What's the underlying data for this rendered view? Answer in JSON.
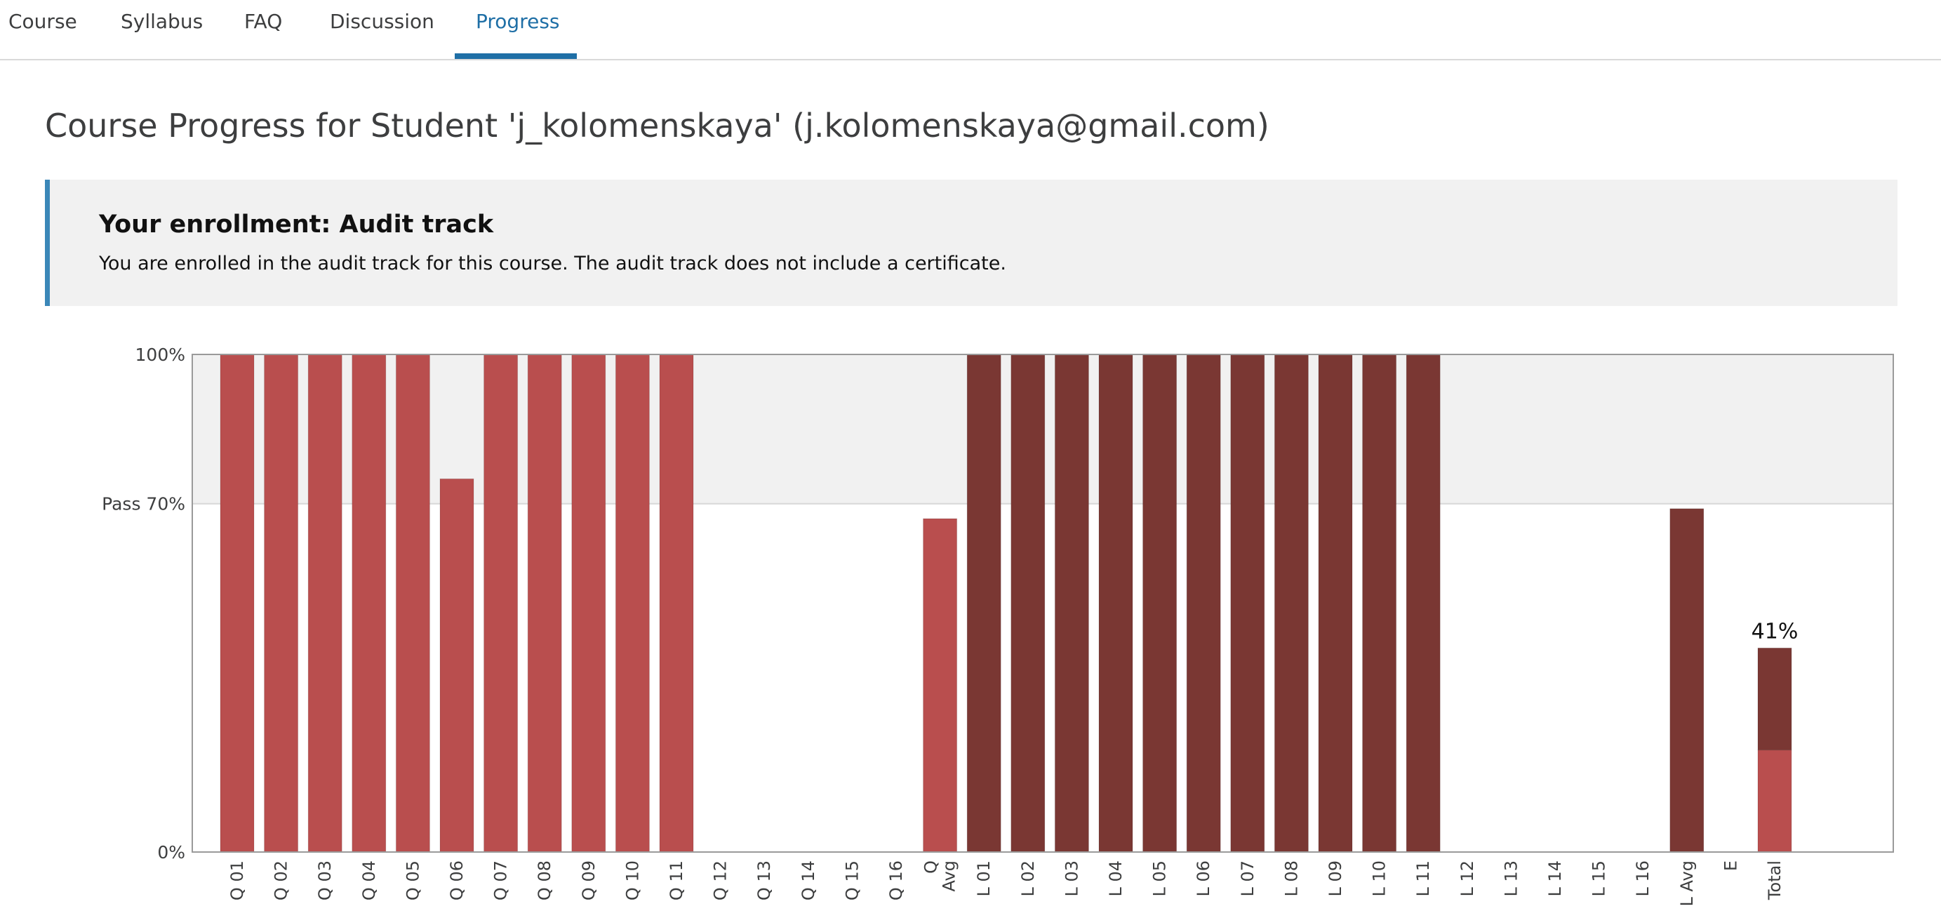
{
  "nav": {
    "tabs": [
      {
        "label": "Course",
        "active": false
      },
      {
        "label": "Syllabus",
        "active": false
      },
      {
        "label": "FAQ",
        "active": false
      },
      {
        "label": "Discussion",
        "active": false
      },
      {
        "label": "Progress",
        "active": true
      }
    ]
  },
  "page": {
    "title": "Course Progress for Student 'j_kolomenskaya' (j.kolomenskaya@gmail.com)"
  },
  "enrollment": {
    "heading": "Your enrollment: Audit track",
    "text": "You are enrolled in the audit track for this course. The audit track does not include a certificate."
  },
  "colors": {
    "accent": "#1f6fa6",
    "quiz_bar": "#b94e4e",
    "lab_bar": "#7a3733",
    "pass_region": "#f1f1f1"
  },
  "chart_data": {
    "type": "bar",
    "ylim": [
      0,
      100
    ],
    "yticks": [
      {
        "value": 0,
        "label": "0%"
      },
      {
        "value": 70,
        "label": "Pass 70%"
      },
      {
        "value": 100,
        "label": "100%"
      }
    ],
    "pass_threshold": 70,
    "categories": [
      "Q 01",
      "Q 02",
      "Q 03",
      "Q 04",
      "Q 05",
      "Q 06",
      "Q 07",
      "Q 08",
      "Q 09",
      "Q 10",
      "Q 11",
      "Q 12",
      "Q 13",
      "Q 14",
      "Q 15",
      "Q 16",
      "Q Avg",
      "L 01",
      "L 02",
      "L 03",
      "L 04",
      "L 05",
      "L 06",
      "L 07",
      "L 08",
      "L 09",
      "L 10",
      "L 11",
      "L 12",
      "L 13",
      "L 14",
      "L 15",
      "L 16",
      "L Avg",
      "E",
      "Total"
    ],
    "tick_labels": [
      [
        "Q 01"
      ],
      [
        "Q 02"
      ],
      [
        "Q 03"
      ],
      [
        "Q 04"
      ],
      [
        "Q 05"
      ],
      [
        "Q 06"
      ],
      [
        "Q 07"
      ],
      [
        "Q 08"
      ],
      [
        "Q 09"
      ],
      [
        "Q 10"
      ],
      [
        "Q 11"
      ],
      [
        "Q 12"
      ],
      [
        "Q 13"
      ],
      [
        "Q 14"
      ],
      [
        "Q 15"
      ],
      [
        "Q 16"
      ],
      [
        "Q",
        "Avg"
      ],
      [
        "L 01"
      ],
      [
        "L 02"
      ],
      [
        "L 03"
      ],
      [
        "L 04"
      ],
      [
        "L 05"
      ],
      [
        "L 06"
      ],
      [
        "L 07"
      ],
      [
        "L 08"
      ],
      [
        "L 09"
      ],
      [
        "L 10"
      ],
      [
        "L 11"
      ],
      [
        "L 12"
      ],
      [
        "L 13"
      ],
      [
        "L 14"
      ],
      [
        "L 15"
      ],
      [
        "L 16"
      ],
      [
        "L Avg"
      ],
      [
        "E"
      ],
      [
        "Total"
      ]
    ],
    "bars": [
      {
        "value": 100,
        "kind": "quiz"
      },
      {
        "value": 100,
        "kind": "quiz"
      },
      {
        "value": 100,
        "kind": "quiz"
      },
      {
        "value": 100,
        "kind": "quiz"
      },
      {
        "value": 100,
        "kind": "quiz"
      },
      {
        "value": 75,
        "kind": "quiz"
      },
      {
        "value": 100,
        "kind": "quiz"
      },
      {
        "value": 100,
        "kind": "quiz"
      },
      {
        "value": 100,
        "kind": "quiz"
      },
      {
        "value": 100,
        "kind": "quiz"
      },
      {
        "value": 100,
        "kind": "quiz"
      },
      {
        "value": 0,
        "kind": "quiz"
      },
      {
        "value": 0,
        "kind": "quiz"
      },
      {
        "value": 0,
        "kind": "quiz"
      },
      {
        "value": 0,
        "kind": "quiz"
      },
      {
        "value": 0,
        "kind": "quiz"
      },
      {
        "value": 67,
        "kind": "quiz"
      },
      {
        "value": 100,
        "kind": "lab"
      },
      {
        "value": 100,
        "kind": "lab"
      },
      {
        "value": 100,
        "kind": "lab"
      },
      {
        "value": 100,
        "kind": "lab"
      },
      {
        "value": 100,
        "kind": "lab"
      },
      {
        "value": 100,
        "kind": "lab"
      },
      {
        "value": 100,
        "kind": "lab"
      },
      {
        "value": 100,
        "kind": "lab"
      },
      {
        "value": 100,
        "kind": "lab"
      },
      {
        "value": 100,
        "kind": "lab"
      },
      {
        "value": 100,
        "kind": "lab"
      },
      {
        "value": 0,
        "kind": "lab"
      },
      {
        "value": 0,
        "kind": "lab"
      },
      {
        "value": 0,
        "kind": "lab"
      },
      {
        "value": 0,
        "kind": "lab"
      },
      {
        "value": 0,
        "kind": "lab"
      },
      {
        "value": 69,
        "kind": "lab"
      },
      {
        "value": 0,
        "kind": "exam"
      },
      {
        "value": 41,
        "kind": "total",
        "segments": [
          {
            "value": 20.5,
            "kind": "quiz"
          },
          {
            "value": 20.5,
            "kind": "lab"
          }
        ]
      }
    ],
    "total_label": "41%"
  }
}
